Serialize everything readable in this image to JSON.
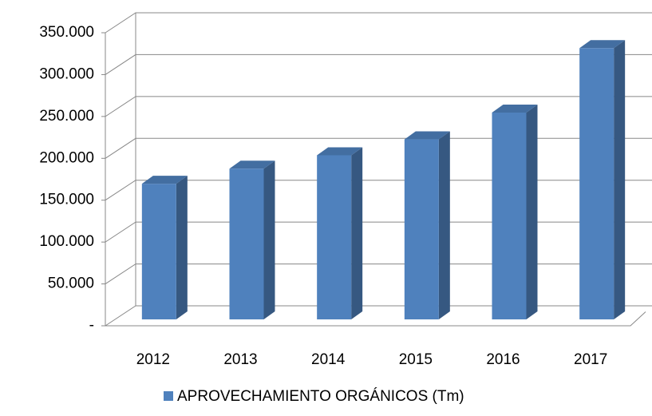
{
  "chart_data": {
    "type": "bar",
    "categories": [
      "2012",
      "2013",
      "2014",
      "2015",
      "2016",
      "2017"
    ],
    "series": [
      {
        "name": "APROVECHAMIENTO ORGÁNICOS  (Tm)",
        "color": "#4f81bd",
        "values": [
          162000,
          180000,
          196000,
          215000,
          247000,
          324000
        ]
      }
    ],
    "ylim": [
      0,
      350000
    ],
    "yticks": [
      {
        "value": 0,
        "label": "-"
      },
      {
        "value": 50000,
        "label": "50.000"
      },
      {
        "value": 100000,
        "label": "100.000"
      },
      {
        "value": 150000,
        "label": "150.000"
      },
      {
        "value": 200000,
        "label": "200.000"
      },
      {
        "value": 250000,
        "label": "250.000"
      },
      {
        "value": 300000,
        "label": "300.000"
      },
      {
        "value": 350000,
        "label": "350.000"
      }
    ],
    "grid": true,
    "legend": "bottom"
  }
}
